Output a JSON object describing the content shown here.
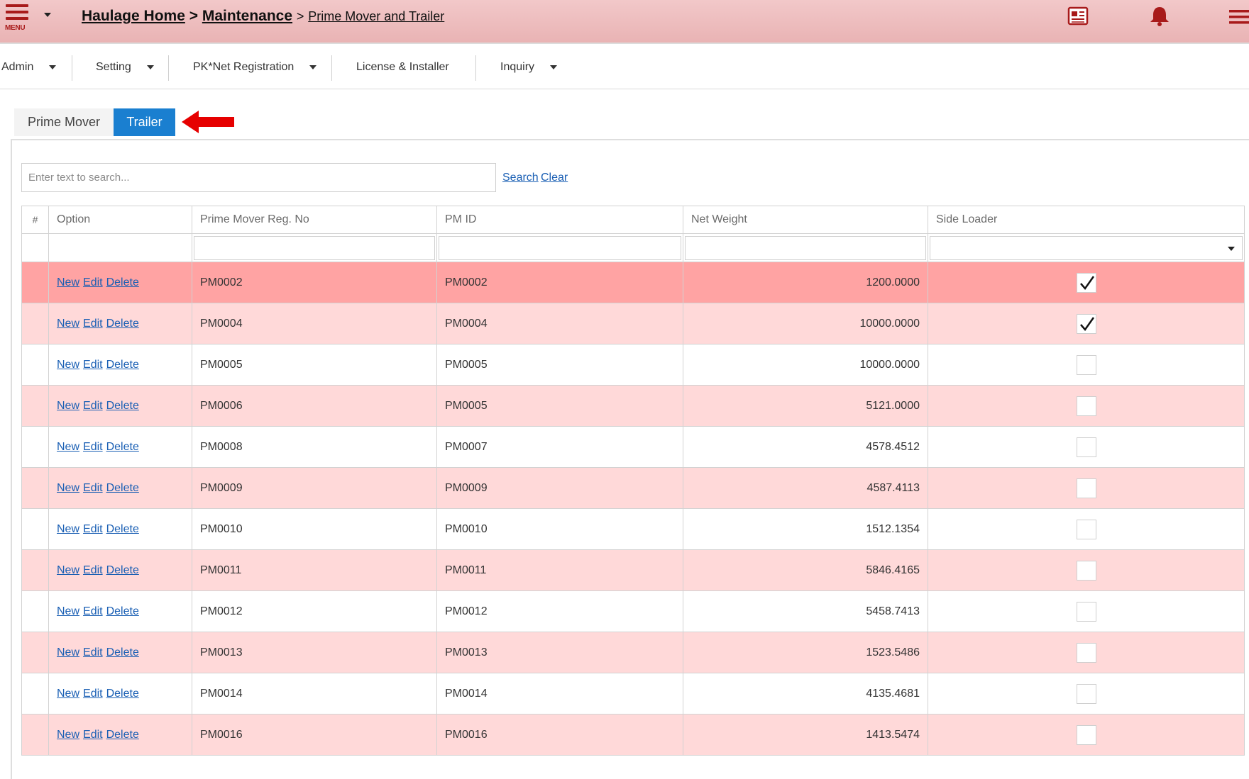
{
  "header": {
    "menu_label": "MENU",
    "breadcrumb": {
      "home": "Haulage Home",
      "separator": ">",
      "section": "Maintenance",
      "current_sep": ">",
      "current": "Prime Mover and Trailer"
    },
    "icons": [
      "news-icon",
      "bell-icon",
      "hamburger-icon"
    ],
    "accent_color": "#a81a1a"
  },
  "navbar": {
    "items": [
      {
        "label": "Admin",
        "has_dropdown": true
      },
      {
        "label": "Setting",
        "has_dropdown": true
      },
      {
        "label": "PK*Net Registration",
        "has_dropdown": true
      },
      {
        "label": "License & Installer",
        "has_dropdown": false
      },
      {
        "label": "Inquiry",
        "has_dropdown": true
      }
    ]
  },
  "tabs": {
    "items": [
      {
        "label": "Prime Mover",
        "active": false
      },
      {
        "label": "Trailer",
        "active": true
      }
    ],
    "active_color": "#1a7fd0"
  },
  "search": {
    "placeholder": "Enter text to search...",
    "value": "",
    "search_label": "Search",
    "clear_label": "Clear"
  },
  "grid": {
    "columns": [
      "#",
      "Option",
      "Prime Mover Reg. No",
      "PM ID",
      "Net Weight",
      "Side Loader"
    ],
    "option_links": {
      "new": "New",
      "edit": "Edit",
      "delete": "Delete"
    },
    "rows": [
      {
        "reg_no": "PM0002",
        "pm_id": "PM0002",
        "net_weight": "1200.0000",
        "side_loader": true,
        "selected": true
      },
      {
        "reg_no": "PM0004",
        "pm_id": "PM0004",
        "net_weight": "10000.0000",
        "side_loader": true
      },
      {
        "reg_no": "PM0005",
        "pm_id": "PM0005",
        "net_weight": "10000.0000",
        "side_loader": false
      },
      {
        "reg_no": "PM0006",
        "pm_id": "PM0005",
        "net_weight": "5121.0000",
        "side_loader": false
      },
      {
        "reg_no": "PM0008",
        "pm_id": "PM0007",
        "net_weight": "4578.4512",
        "side_loader": false
      },
      {
        "reg_no": "PM0009",
        "pm_id": "PM0009",
        "net_weight": "4587.4113",
        "side_loader": false
      },
      {
        "reg_no": "PM0010",
        "pm_id": "PM0010",
        "net_weight": "1512.1354",
        "side_loader": false
      },
      {
        "reg_no": "PM0011",
        "pm_id": "PM0011",
        "net_weight": "5846.4165",
        "side_loader": false
      },
      {
        "reg_no": "PM0012",
        "pm_id": "PM0012",
        "net_weight": "5458.7413",
        "side_loader": false
      },
      {
        "reg_no": "PM0013",
        "pm_id": "PM0013",
        "net_weight": "1523.5486",
        "side_loader": false
      },
      {
        "reg_no": "PM0014",
        "pm_id": "PM0014",
        "net_weight": "4135.4681",
        "side_loader": false
      },
      {
        "reg_no": "PM0016",
        "pm_id": "PM0016",
        "net_weight": "1413.5474",
        "side_loader": false
      }
    ],
    "colors": {
      "selected_row": "#ffa3a3",
      "alt_row": "#ffd9d9",
      "link": "#1a5fb4"
    }
  }
}
